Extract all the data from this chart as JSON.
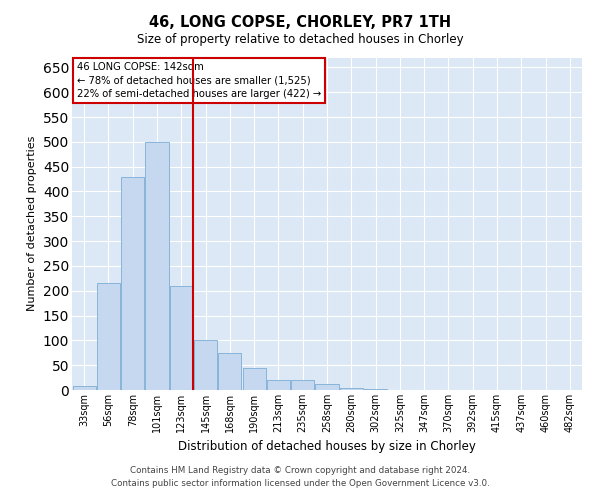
{
  "title": "46, LONG COPSE, CHORLEY, PR7 1TH",
  "subtitle": "Size of property relative to detached houses in Chorley",
  "xlabel": "Distribution of detached houses by size in Chorley",
  "ylabel": "Number of detached properties",
  "footer_line1": "Contains HM Land Registry data © Crown copyright and database right 2024.",
  "footer_line2": "Contains public sector information licensed under the Open Government Licence v3.0.",
  "annotation_line1": "46 LONG COPSE: 142sqm",
  "annotation_line2": "← 78% of detached houses are smaller (1,525)",
  "annotation_line3": "22% of semi-detached houses are larger (422) →",
  "bar_color": "#c5d8f0",
  "bar_edgecolor": "#7aadd4",
  "line_color": "#cc0000",
  "background_color": "#dce8f5",
  "categories": [
    "33sqm",
    "56sqm",
    "78sqm",
    "101sqm",
    "123sqm",
    "145sqm",
    "168sqm",
    "190sqm",
    "213sqm",
    "235sqm",
    "258sqm",
    "280sqm",
    "302sqm",
    "325sqm",
    "347sqm",
    "370sqm",
    "392sqm",
    "415sqm",
    "437sqm",
    "460sqm",
    "482sqm"
  ],
  "values": [
    8,
    215,
    430,
    500,
    210,
    100,
    75,
    45,
    20,
    20,
    12,
    5,
    3,
    1,
    1,
    1,
    0,
    0,
    0,
    0,
    1
  ],
  "ylim": [
    0,
    670
  ],
  "yticks": [
    0,
    50,
    100,
    150,
    200,
    250,
    300,
    350,
    400,
    450,
    500,
    550,
    600,
    650
  ]
}
